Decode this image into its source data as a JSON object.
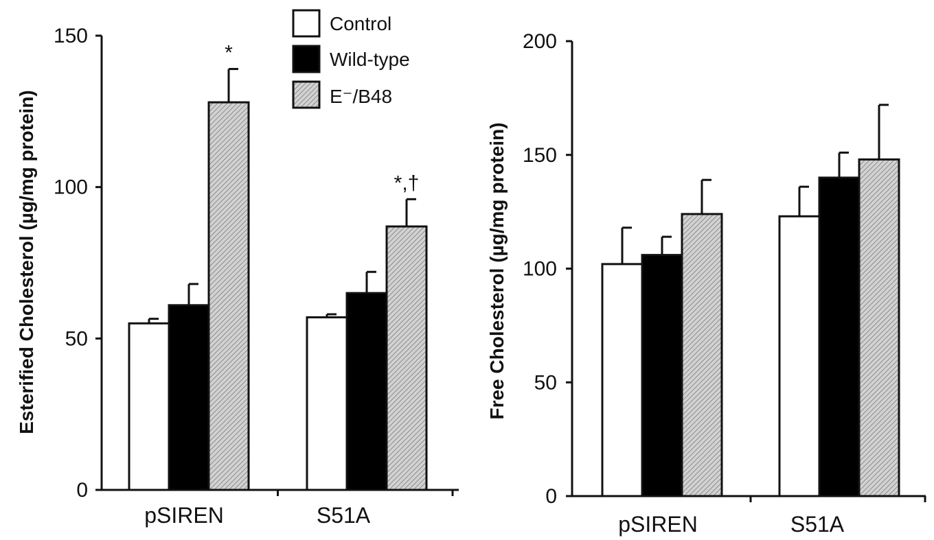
{
  "legend": {
    "items": [
      {
        "label": "Control",
        "fill": "white"
      },
      {
        "label": "Wild-type",
        "fill": "black"
      },
      {
        "label": "E⁻/B48",
        "fill": "hatch"
      }
    ]
  },
  "colors": {
    "control": "#ffffff",
    "wildtype": "#000000",
    "eb48": "#c4c4c4",
    "axis": "#111111"
  },
  "chart_data": [
    {
      "type": "bar",
      "ylabel": "Esterified Cholesterol (µg/mg protein)",
      "ylim": [
        0,
        150
      ],
      "yticks": [
        0,
        50,
        100,
        150
      ],
      "categories": [
        "pSIREN",
        "S51A"
      ],
      "series": [
        {
          "name": "Control",
          "values": [
            55,
            57
          ],
          "errors": [
            1.5,
            1
          ]
        },
        {
          "name": "Wild-type",
          "values": [
            61,
            65
          ],
          "errors": [
            7,
            7
          ]
        },
        {
          "name": "E⁻/B48",
          "values": [
            128,
            87
          ],
          "errors": [
            11,
            9
          ]
        }
      ],
      "annotations": [
        {
          "category": "pSIREN",
          "series": "E⁻/B48",
          "text": "*"
        },
        {
          "category": "S51A",
          "series": "E⁻/B48",
          "text": "*,†"
        }
      ]
    },
    {
      "type": "bar",
      "ylabel": "Free Cholesterol (µg/mg protein)",
      "ylim": [
        0,
        200
      ],
      "yticks": [
        0,
        50,
        100,
        150,
        200
      ],
      "categories": [
        "pSIREN",
        "S51A"
      ],
      "series": [
        {
          "name": "Control",
          "values": [
            102,
            123
          ],
          "errors": [
            16,
            13
          ]
        },
        {
          "name": "Wild-type",
          "values": [
            106,
            140
          ],
          "errors": [
            8,
            11
          ]
        },
        {
          "name": "E⁻/B48",
          "values": [
            124,
            148
          ],
          "errors": [
            15,
            24
          ]
        }
      ],
      "annotations": []
    }
  ]
}
